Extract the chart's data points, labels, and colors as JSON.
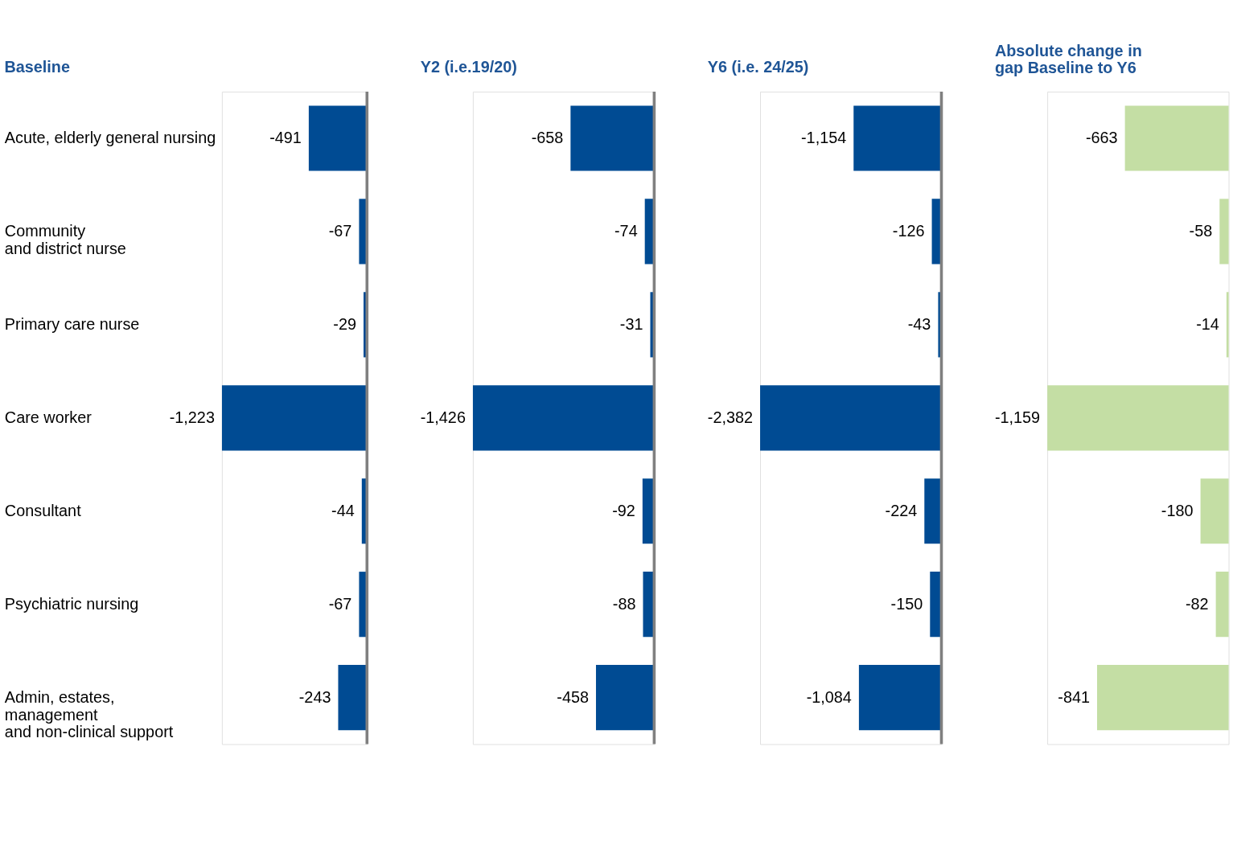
{
  "chart_data": [
    {
      "type": "bar",
      "orientation": "horizontal",
      "title": "Baseline",
      "tick_labels": "y",
      "categories": [
        "Acute, elderly general nursing",
        "Community\nand district nurse",
        "Primary care nurse",
        "Care worker",
        "Consultant",
        "Psychiatric nursing",
        "Admin, estates,\nmanagement\nand non-clinical support"
      ],
      "values": [
        -491,
        -67,
        -29,
        -1223,
        -44,
        -67,
        -243
      ],
      "value_labels": [
        "-491",
        "-67",
        "-29",
        "-1,223",
        "-44",
        "-67",
        "-243"
      ],
      "color": "#004b93",
      "ref_lines": [
        {
          "axis": "x",
          "value": 0,
          "color": "#808080"
        }
      ]
    },
    {
      "type": "bar",
      "orientation": "horizontal",
      "title": "Y2 (i.e.19/20)",
      "tick_labels": false,
      "values": [
        -658,
        -74,
        -31,
        -1426,
        -92,
        -88,
        -458
      ],
      "value_labels": [
        "-658",
        "-74",
        "-31",
        "-1,426",
        "-92",
        "-88",
        "-458"
      ],
      "color": "#004b93",
      "ref_lines": [
        {
          "axis": "x",
          "value": 0,
          "color": "#808080"
        }
      ]
    },
    {
      "type": "bar",
      "orientation": "horizontal",
      "title": "Y6 (i.e. 24/25)",
      "tick_labels": false,
      "values": [
        -1154,
        -126,
        -43,
        -2382,
        -224,
        -150,
        -1084
      ],
      "value_labels": [
        "-1,154",
        "-126",
        "-43",
        "-2,382",
        "-224",
        "-150",
        "-1,084"
      ],
      "color": "#004b93",
      "ref_lines": [
        {
          "axis": "x",
          "value": 0,
          "color": "#808080"
        }
      ]
    },
    {
      "type": "bar",
      "orientation": "horizontal",
      "title": "Absolute change in\ngap Baseline to Y6",
      "tick_labels": false,
      "values": [
        -663,
        -58,
        -14,
        -1159,
        -180,
        -82,
        -841
      ],
      "value_labels": [
        "-663",
        "-58",
        "-14",
        "-1,159",
        "-180",
        "-82",
        "-841"
      ],
      "color": "#c4dea4"
    }
  ]
}
